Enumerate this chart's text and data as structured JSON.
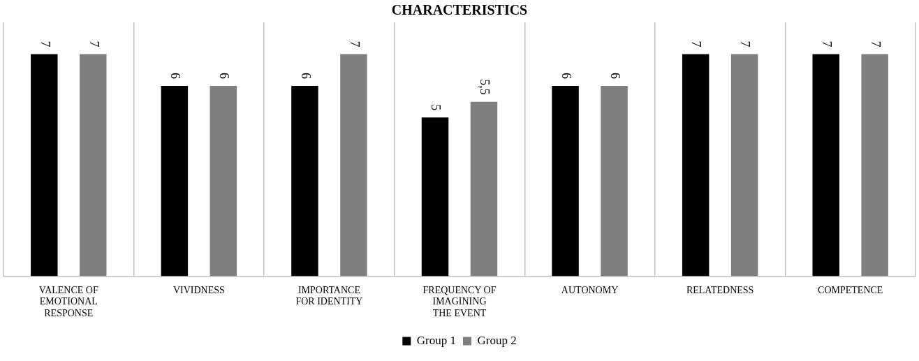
{
  "chart_data": {
    "type": "bar",
    "title": "CHARACTERISTICS",
    "categories": [
      "VALENCE OF EMOTIONAL RESPONSE",
      "VIVIDNESS",
      "IMPORTANCE FOR IDENTITY",
      "FREQUENCY OF IMAGINING THE EVENT",
      "AUTONOMY",
      "RELATEDNESS",
      "COMPETENCE"
    ],
    "series": [
      {
        "name": "Group 1",
        "color": "#000000",
        "values": [
          7,
          6,
          6,
          5,
          6,
          7,
          7
        ],
        "value_labels": [
          "7",
          "6",
          "6",
          "5",
          "6",
          "7",
          "7"
        ]
      },
      {
        "name": "Group 2",
        "color": "#7f7f7f",
        "values": [
          7,
          6,
          7,
          5.5,
          6,
          7,
          7
        ],
        "value_labels": [
          "7",
          "6",
          "7",
          "5,5",
          "6",
          "7",
          "7"
        ]
      }
    ],
    "ylim": [
      0,
      8
    ],
    "grid": "x",
    "legend": "bottom",
    "tick_labels": "x"
  }
}
